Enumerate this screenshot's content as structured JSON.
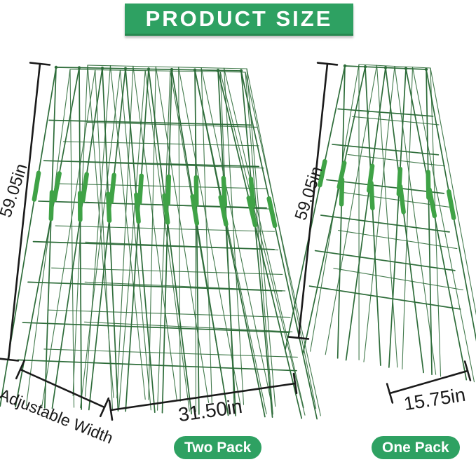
{
  "banner": {
    "title": "PRODUCT SIZE"
  },
  "colors": {
    "banner_green": "#2ea162",
    "badge_green": "#2ea162",
    "lattice_green": "#2d6c39",
    "clip_green": "#3fa246",
    "dimension_black": "#1a1a1a"
  },
  "trellis_large": {
    "height_label": "59.05in",
    "width_label": "31.50in",
    "adjustable_width_label": "Adjustable Width",
    "pack_label": "Two Pack"
  },
  "trellis_small": {
    "height_label": "59.05in",
    "width_label": "15.75in",
    "pack_label": "One Pack"
  }
}
